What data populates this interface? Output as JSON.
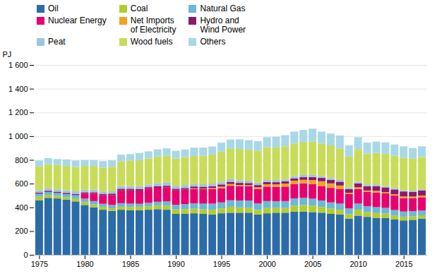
{
  "chart_data": {
    "type": "bar",
    "stacked": true,
    "categories": [
      1975,
      1976,
      1977,
      1978,
      1979,
      1980,
      1981,
      1982,
      1983,
      1984,
      1985,
      1986,
      1987,
      1988,
      1989,
      1990,
      1991,
      1992,
      1993,
      1994,
      1995,
      1996,
      1997,
      1998,
      1999,
      2000,
      2001,
      2002,
      2003,
      2004,
      2005,
      2006,
      2007,
      2008,
      2009,
      2010,
      2011,
      2012,
      2013,
      2014,
      2015,
      2016,
      2017
    ],
    "series": [
      {
        "name": "Oil",
        "color": "#2b6ca8",
        "values": [
          460,
          480,
          475,
          465,
          450,
          420,
          400,
          380,
          370,
          380,
          375,
          375,
          380,
          385,
          380,
          345,
          345,
          350,
          345,
          340,
          350,
          355,
          355,
          355,
          340,
          350,
          355,
          355,
          365,
          365,
          360,
          355,
          345,
          340,
          305,
          330,
          320,
          310,
          310,
          300,
          290,
          295,
          305
        ]
      },
      {
        "name": "Coal",
        "color": "#b5cc2e",
        "values": [
          30,
          25,
          22,
          22,
          25,
          25,
          25,
          25,
          22,
          25,
          28,
          30,
          30,
          32,
          35,
          38,
          40,
          38,
          38,
          40,
          40,
          50,
          45,
          42,
          38,
          45,
          42,
          40,
          50,
          55,
          55,
          48,
          45,
          40,
          38,
          50,
          40,
          42,
          38,
          32,
          32,
          30,
          28
        ]
      },
      {
        "name": "Natural Gas",
        "color": "#6bb8d8",
        "values": [
          25,
          25,
          25,
          25,
          28,
          28,
          28,
          25,
          28,
          30,
          28,
          25,
          28,
          30,
          35,
          38,
          42,
          45,
          48,
          52,
          52,
          55,
          58,
          60,
          55,
          58,
          55,
          58,
          60,
          60,
          58,
          55,
          52,
          52,
          48,
          52,
          50,
          50,
          48,
          45,
          43,
          43,
          40
        ]
      },
      {
        "name": "Nuclear Energy",
        "color": "#e8006e",
        "values": [
          0,
          0,
          0,
          0,
          0,
          42,
          62,
          72,
          82,
          108,
          112,
          112,
          118,
          118,
          118,
          122,
          122,
          122,
          122,
          122,
          118,
          122,
          120,
          120,
          122,
          122,
          122,
          122,
          122,
          122,
          122,
          122,
          122,
          122,
          122,
          122,
          122,
          122,
          122,
          122,
          112,
          108,
          112
        ]
      },
      {
        "name": "Net Imports\nof Electricity",
        "color": "#f4a020",
        "values": [
          0,
          0,
          0,
          0,
          0,
          0,
          0,
          0,
          0,
          0,
          0,
          0,
          0,
          0,
          0,
          0,
          0,
          5,
          5,
          8,
          15,
          15,
          10,
          10,
          15,
          20,
          20,
          25,
          28,
          30,
          35,
          40,
          38,
          30,
          10,
          15,
          10,
          15,
          10,
          12,
          15,
          15,
          15
        ]
      },
      {
        "name": "Hydro and\nWind Power",
        "color": "#8b1a6b",
        "values": [
          10,
          10,
          10,
          10,
          10,
          12,
          12,
          12,
          14,
          14,
          14,
          14,
          14,
          14,
          14,
          14,
          14,
          16,
          16,
          16,
          18,
          18,
          18,
          18,
          18,
          18,
          18,
          20,
          20,
          22,
          25,
          28,
          30,
          32,
          30,
          32,
          35,
          38,
          40,
          40,
          42,
          40,
          42
        ]
      },
      {
        "name": "Peat",
        "color": "#a0c4e0",
        "values": [
          20,
          20,
          20,
          22,
          22,
          22,
          22,
          20,
          20,
          22,
          22,
          22,
          22,
          25,
          25,
          25,
          25,
          22,
          22,
          22,
          22,
          22,
          22,
          20,
          20,
          18,
          18,
          18,
          18,
          18,
          18,
          15,
          15,
          15,
          15,
          15,
          12,
          12,
          12,
          12,
          10,
          10,
          10
        ]
      },
      {
        "name": "Wood fuels",
        "color": "#c8dc5a",
        "values": [
          200,
          205,
          205,
          205,
          205,
          200,
          200,
          200,
          205,
          210,
          215,
          220,
          220,
          225,
          230,
          230,
          235,
          235,
          240,
          245,
          255,
          260,
          265,
          262,
          270,
          275,
          275,
          275,
          275,
          280,
          280,
          275,
          275,
          265,
          260,
          275,
          265,
          270,
          272,
          272,
          275,
          270,
          272
        ]
      },
      {
        "name": "Others",
        "color": "#a8d8e8",
        "values": [
          50,
          50,
          50,
          55,
          55,
          50,
          50,
          55,
          55,
          55,
          55,
          60,
          60,
          60,
          60,
          65,
          65,
          70,
          68,
          68,
          75,
          75,
          80,
          80,
          80,
          85,
          90,
          95,
          100,
          100,
          110,
          100,
          100,
          110,
          95,
          100,
          92,
          95,
          95,
          95,
          95,
          88,
          90
        ]
      }
    ],
    "ylabel": "PJ",
    "ylim": [
      0,
      1600
    ],
    "yticks": [
      0,
      200,
      400,
      600,
      800,
      {
        "value": 1000,
        "label": "1 000"
      },
      {
        "value": 1200,
        "label": "1 200"
      },
      {
        "value": 1400,
        "label": "1 400"
      },
      {
        "value": 1600,
        "label": "1 600"
      }
    ],
    "xticks": [
      1975,
      1980,
      1985,
      1990,
      1995,
      2000,
      2005,
      2010,
      2015
    ],
    "grid": true,
    "legend": "upper left"
  }
}
